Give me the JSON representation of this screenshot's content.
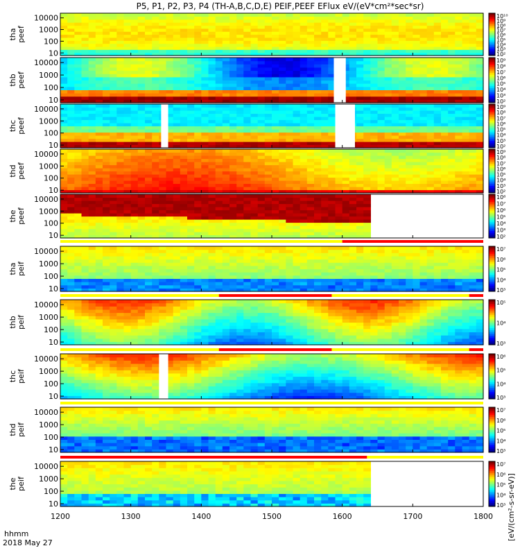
{
  "title": "P5, P1, P2, P3, P4 (TH-A,B,C,D,E) PEIF,PEEF EFlux eV/(eV*cm²*sec*sr)",
  "units_label": "[eV/(cm²-s-sr-eV)]",
  "time_label": "hhmm",
  "date_label": "2018 May 27",
  "colors": {
    "flag_red": "#ff0000",
    "flag_yellow": "#ffff00",
    "line": "#000000"
  },
  "chart_data": {
    "type": "heatmap",
    "x_ticks": [
      "1200",
      "1300",
      "1400",
      "1500",
      "1600",
      "1700",
      "1800"
    ],
    "x_range": [
      1200,
      1800
    ],
    "y_scale": "log",
    "y_ticks": [
      "10",
      "100",
      "1000",
      "10000"
    ],
    "panels": [
      {
        "label1": "tha",
        "label2": "peef",
        "cb_ticks": [
          "10⁹",
          "10⁸",
          "10⁷",
          "10⁶",
          "10⁵",
          "10⁴",
          "10³",
          "10²"
        ],
        "cb_top": "10¹⁰",
        "gaps": [],
        "data_end": 1800
      },
      {
        "label1": "thb",
        "label2": "peef",
        "cb_ticks": [
          "10⁸",
          "10⁷",
          "10⁶",
          "10⁵",
          "10⁴",
          "10³",
          "10²"
        ],
        "cb_top": "10⁹",
        "gaps": [
          [
            1588,
            1605
          ]
        ],
        "data_end": 1800
      },
      {
        "label1": "thc",
        "label2": "peef",
        "cb_ticks": [
          "10⁸",
          "10⁷",
          "10⁶",
          "10⁵",
          "10⁴",
          "10³",
          "10²"
        ],
        "cb_top": "10⁹",
        "gaps": [
          [
            1343,
            1353
          ],
          [
            1590,
            1618
          ]
        ],
        "data_end": 1800
      },
      {
        "label1": "thd",
        "label2": "peef",
        "cb_ticks": [
          "10⁸",
          "10⁷",
          "10⁶",
          "10⁵",
          "10⁴",
          "10³",
          "10²"
        ],
        "cb_top": "10⁹",
        "gaps": [],
        "data_end": 1800
      },
      {
        "label1": "the",
        "label2": "peef",
        "cb_ticks": [
          "10⁷",
          "10⁶",
          "10⁵",
          "10⁴",
          "10³",
          "10²"
        ],
        "cb_top": "10⁸",
        "gaps": [],
        "data_end": 1642
      },
      {
        "label1": "tha",
        "label2": "peif",
        "cb_ticks": [
          "10⁷",
          "10⁶",
          "10⁵",
          "10⁴",
          "10³"
        ],
        "cb_top": "",
        "gaps": [],
        "data_end": 1800
      },
      {
        "label1": "thb",
        "label2": "peif",
        "cb_ticks": [
          "10⁵",
          "10⁴",
          "10³"
        ],
        "cb_top": "",
        "gaps": [],
        "data_end": 1800
      },
      {
        "label1": "thc",
        "label2": "peif",
        "cb_ticks": [
          "10⁶",
          "10⁵",
          "10⁴",
          "10³"
        ],
        "cb_top": "",
        "gaps": [
          [
            1340,
            1353
          ]
        ],
        "data_end": 1800
      },
      {
        "label1": "thd",
        "label2": "peif",
        "cb_ticks": [
          "10⁷",
          "10⁶",
          "10⁵",
          "10⁴",
          "10³"
        ],
        "cb_top": "",
        "gaps": [],
        "data_end": 1800
      },
      {
        "label1": "the",
        "label2": "peif",
        "cb_ticks": [
          "10⁷",
          "10⁶",
          "10⁵",
          "10⁴",
          "10³"
        ],
        "cb_top": "",
        "gaps": [],
        "data_end": 1642
      }
    ]
  }
}
